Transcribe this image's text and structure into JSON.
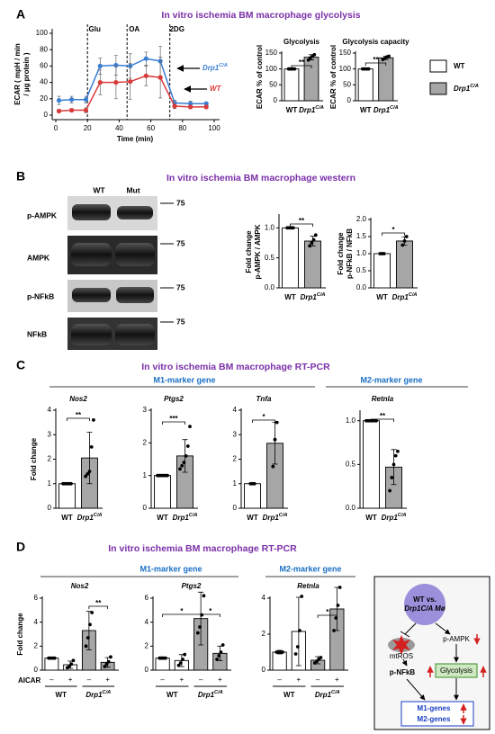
{
  "panels": [
    {
      "label": "A",
      "title": "In vitro ischemia BM macrophage glycolysis"
    },
    {
      "label": "B",
      "title": "In vitro ischemia BM macrophage  western"
    },
    {
      "label": "C",
      "title": "In vitro ischemia BM macrophage  RT-PCR",
      "subheads": [
        "M1-marker gene",
        "M2-marker gene"
      ]
    },
    {
      "label": "D",
      "title": "In vitro ischemia BM macrophage  RT-PCR",
      "subheads": [
        "M1-marker gene",
        "M2-marker gene"
      ],
      "row_label": "AICAR"
    }
  ],
  "legend": [
    {
      "name": "WT",
      "color": "#ffffff"
    },
    {
      "name": "Drp1C/A",
      "color": "#a6a6a6"
    }
  ],
  "western": {
    "columns": [
      "WT",
      "Mut"
    ],
    "rows": [
      "p-AMPK",
      "AMPK",
      "p-NFkB",
      "NFkB"
    ],
    "markers": [
      "75",
      "75",
      "75",
      "75"
    ]
  },
  "chart_data": [
    {
      "type": "line",
      "xlabel": "Time (min)",
      "ylabel": [
        "ECAR ( mpH / min",
        "/ µg protein )"
      ],
      "x": [
        2,
        10,
        19,
        28,
        38,
        47,
        57,
        66,
        75,
        85,
        95
      ],
      "series": [
        {
          "name": "Drp1C/A",
          "color": "#3b7fd4",
          "values": [
            18,
            19,
            19,
            60,
            61,
            60,
            69,
            66,
            15,
            14,
            14
          ],
          "errors": [
            5,
            4,
            4,
            10,
            12,
            15,
            8,
            18,
            3,
            3,
            2
          ]
        },
        {
          "name": "WT",
          "color": "#d93a3a",
          "values": [
            5,
            6,
            6,
            40,
            40,
            41,
            48,
            46,
            11,
            10,
            10
          ],
          "errors": [
            2,
            2,
            3,
            15,
            20,
            22,
            12,
            25,
            3,
            2,
            2
          ]
        }
      ],
      "markers": [
        {
          "label": "Glu",
          "x": 20
        },
        {
          "label": "OA",
          "x": 45
        },
        {
          "label": "2DG",
          "x": 72
        }
      ],
      "xlim": [
        0,
        100
      ],
      "xticks": [
        0,
        20,
        40,
        60,
        80,
        100
      ],
      "ylim": [
        0,
        100
      ],
      "yticks": [
        0,
        20,
        40,
        60,
        80,
        100
      ]
    },
    {
      "type": "bar",
      "title": "Glycolysis",
      "ylabel": [
        "ECAR % of control"
      ],
      "categories": [
        "WT",
        "Drp1C/A"
      ],
      "values": [
        100,
        137
      ],
      "errors": [
        1,
        8
      ],
      "points": [
        [
          100,
          100,
          100,
          100
        ],
        [
          128,
          135,
          140,
          145
        ]
      ],
      "colors": [
        "#ffffff",
        "#a6a6a6"
      ],
      "ylim": [
        0,
        150
      ],
      "yticks": [
        0,
        50,
        100,
        150
      ],
      "significance": [
        "**"
      ]
    },
    {
      "type": "bar",
      "title": "Glycolysis capacity",
      "ylabel": [
        "ECAR % of control"
      ],
      "categories": [
        "WT",
        "Drp1C/A"
      ],
      "values": [
        100,
        135
      ],
      "errors": [
        1,
        5
      ],
      "points": [
        [
          100,
          100,
          100,
          100
        ],
        [
          130,
          133,
          138,
          140
        ]
      ],
      "colors": [
        "#ffffff",
        "#a6a6a6"
      ],
      "ylim": [
        0,
        150
      ],
      "yticks": [
        0,
        50,
        100,
        150
      ],
      "significance": [
        "**"
      ]
    },
    {
      "type": "bar",
      "ylabel": [
        "Fold change",
        "p-AMPK / AMPK"
      ],
      "categories": [
        "WT",
        "Drp1C/A"
      ],
      "values": [
        1.0,
        0.78
      ],
      "errors": [
        0.01,
        0.08
      ],
      "points": [
        [
          1,
          1,
          1,
          1
        ],
        [
          0.7,
          0.75,
          0.8,
          0.88
        ]
      ],
      "colors": [
        "#ffffff",
        "#a6a6a6"
      ],
      "ylim": [
        0,
        1.2
      ],
      "yticks": [
        {
          "value": 0,
          "label": "0.0"
        },
        0.5,
        {
          "value": 1,
          "label": "1.0"
        }
      ],
      "significance": [
        "**"
      ]
    },
    {
      "type": "bar",
      "ylabel": [
        "Fold change",
        "p-NFkB / NFkB"
      ],
      "categories": [
        "WT",
        "Drp1C/A"
      ],
      "values": [
        1.0,
        1.37
      ],
      "errors": [
        0.01,
        0.12
      ],
      "points": [
        [
          1,
          1,
          1
        ],
        [
          1.25,
          1.37,
          1.5
        ]
      ],
      "colors": [
        "#ffffff",
        "#a6a6a6"
      ],
      "ylim": [
        0,
        2
      ],
      "yticks": [
        {
          "value": 0,
          "label": "0.0"
        },
        0.5,
        {
          "value": 1,
          "label": "1.0"
        },
        1.5,
        {
          "value": 2,
          "label": "2.0"
        }
      ],
      "significance": [
        "*"
      ]
    },
    {
      "type": "bar",
      "title": "Nos2",
      "ylabel": [
        "Fold change"
      ],
      "categories": [
        "WT",
        "Drp1C/A"
      ],
      "values": [
        1,
        2.05
      ],
      "errors": [
        0,
        1.05
      ],
      "points": [
        [
          1,
          1,
          1,
          1,
          1
        ],
        [
          1.3,
          1.4,
          1.5,
          2.5,
          3.6
        ]
      ],
      "colors": [
        "#ffffff",
        "#a6a6a6"
      ],
      "ylim": [
        0,
        4
      ],
      "yticks": [
        0,
        1,
        2,
        3,
        4
      ],
      "significance": [
        "**"
      ]
    },
    {
      "type": "bar",
      "title": "Ptgs2",
      "categories": [
        "WT",
        "Drp1C/A"
      ],
      "values": [
        1,
        1.6
      ],
      "errors": [
        0,
        0.5
      ],
      "points": [
        [
          1,
          1,
          1,
          1,
          1,
          1
        ],
        [
          1.2,
          1.3,
          1.4,
          1.6,
          1.9,
          2.5
        ]
      ],
      "colors": [
        "#ffffff",
        "#a6a6a6"
      ],
      "ylim": [
        0,
        3
      ],
      "yticks": [
        0,
        1,
        2,
        3
      ],
      "significance": [
        "***"
      ]
    },
    {
      "type": "bar",
      "title": "Tnfa",
      "categories": [
        "WT",
        "Drp1C/A"
      ],
      "values": [
        1,
        2.65
      ],
      "errors": [
        0,
        0.85
      ],
      "points": [
        [
          1,
          1,
          1
        ],
        [
          1.7,
          2.8,
          3.5
        ]
      ],
      "colors": [
        "#ffffff",
        "#a6a6a6"
      ],
      "ylim": [
        0,
        4
      ],
      "yticks": [
        0,
        1,
        2,
        3,
        4
      ],
      "significance": [
        "*"
      ]
    },
    {
      "type": "bar",
      "title": "Retnla",
      "categories": [
        "WT",
        "Drp1C/A"
      ],
      "values": [
        1,
        0.47
      ],
      "errors": [
        0.01,
        0.2
      ],
      "points": [
        [
          1,
          1,
          1,
          1,
          1,
          1
        ],
        [
          0.2,
          0.35,
          0.5,
          0.6,
          0.65
        ]
      ],
      "colors": [
        "#ffffff",
        "#a6a6a6"
      ],
      "ylim": [
        0,
        1.1
      ],
      "yticks": [
        {
          "value": 0,
          "label": "0.0"
        },
        0.5,
        {
          "value": 1,
          "label": "1.0"
        }
      ],
      "significance": [
        "**"
      ]
    },
    {
      "type": "bar",
      "title": "Nos2",
      "ylabel": [
        "Fold change"
      ],
      "categories": [
        "–",
        "+",
        "–",
        "+"
      ],
      "groups": [
        "WT",
        "Drp1C/A"
      ],
      "values": [
        1,
        0.45,
        3.3,
        0.65
      ],
      "errors": [
        0.05,
        0.3,
        1.6,
        0.4
      ],
      "points": [
        [
          1,
          1,
          1,
          1
        ],
        [
          0.2,
          0.3,
          0.5,
          0.8
        ],
        [
          2,
          2.7,
          3.8,
          4.8
        ],
        [
          0.3,
          0.5,
          0.7,
          1.1
        ]
      ],
      "colors": [
        "#ffffff",
        "#ffffff",
        "#a6a6a6",
        "#a6a6a6"
      ],
      "ylim": [
        0,
        6
      ],
      "yticks": [
        0,
        2,
        4,
        6
      ],
      "significance": [
        "**"
      ]
    },
    {
      "type": "bar",
      "title": "Ptgs2",
      "categories": [
        "–",
        "+",
        "–",
        "+"
      ],
      "groups": [
        "WT",
        "Drp1C/A"
      ],
      "values": [
        1,
        0.8,
        4.3,
        1.4
      ],
      "errors": [
        0.1,
        0.5,
        2.2,
        0.6
      ],
      "points": [
        [
          1,
          1,
          1,
          1
        ],
        [
          0.4,
          0.6,
          0.9,
          1.3
        ],
        [
          3.1,
          3.6,
          4.6,
          6.2
        ],
        [
          0.9,
          1.2,
          1.5,
          2.1
        ]
      ],
      "colors": [
        "#ffffff",
        "#ffffff",
        "#a6a6a6",
        "#a6a6a6"
      ],
      "ylim": [
        0,
        6
      ],
      "yticks": [
        0,
        2,
        4,
        6
      ],
      "significance": [
        "*",
        "*"
      ]
    },
    {
      "type": "bar",
      "title": "Retnla",
      "categories": [
        "–",
        "+",
        "–",
        "+"
      ],
      "groups": [
        "WT",
        "Drp1C/A"
      ],
      "values": [
        1,
        2.15,
        0.55,
        3.4
      ],
      "errors": [
        0.1,
        1.9,
        0.2,
        1.2
      ],
      "points": [
        [
          1,
          1,
          1,
          1
        ],
        [
          0.9,
          1.3,
          2.2,
          4.1
        ],
        [
          0.4,
          0.5,
          0.6,
          0.7
        ],
        [
          2.2,
          2.9,
          3.6,
          4.6
        ]
      ],
      "colors": [
        "#ffffff",
        "#ffffff",
        "#a6a6a6",
        "#a6a6a6"
      ],
      "ylim": [
        0,
        4
      ],
      "yticks": [
        0,
        2,
        4
      ],
      "significance": [
        "*"
      ]
    }
  ],
  "diagram": {
    "center": [
      "WT vs.",
      "Drp1C/A Mø"
    ],
    "mtros": "mtROS",
    "pampk": "p-AMPK",
    "pnfkb": "p-NFkB",
    "glycolysis": "Glycolysis",
    "m1": "M1-genes",
    "m2": "M2-genes"
  }
}
